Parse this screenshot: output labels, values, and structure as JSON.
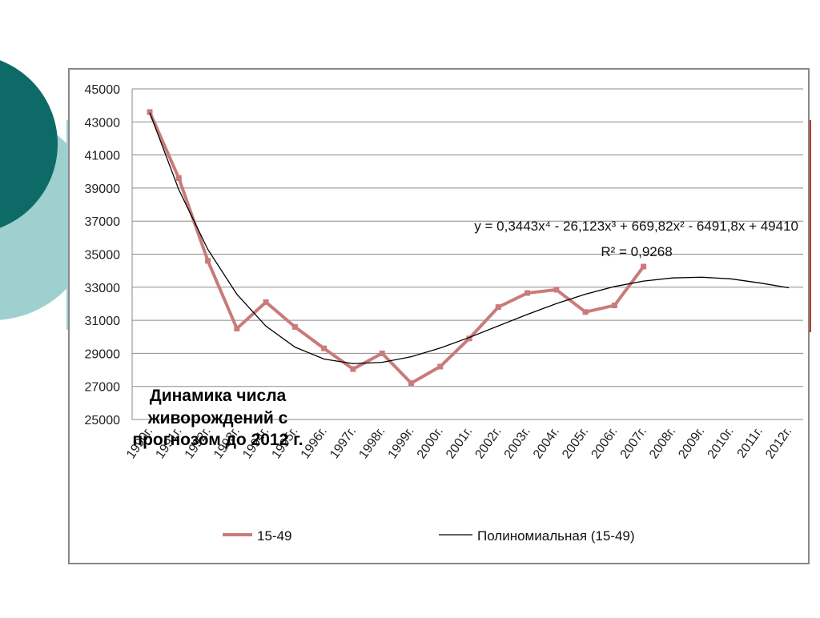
{
  "chart_data": {
    "type": "line",
    "title_lines": [
      "Динамика числа",
      "живорождений  с",
      "прогнозом до 2012 г."
    ],
    "categories": [
      "1990г.",
      "1991г.",
      "1992г.",
      "1993г.",
      "1994г.",
      "1995г.",
      "1996г.",
      "1997г.",
      "1998г.",
      "1999г.",
      "2000г.",
      "2001г.",
      "2002г.",
      "2003г.",
      "2004г.",
      "2005г.",
      "2006г.",
      "2007г.",
      "2008г.",
      "2009г.",
      "2010г.",
      "2011г.",
      "2012г."
    ],
    "series": [
      {
        "name": "15-49",
        "color": "#c97b7b",
        "values": [
          43600,
          39600,
          34600,
          30500,
          32100,
          30600,
          29300,
          28050,
          29000,
          27200,
          28200,
          29900,
          31800,
          32650,
          32850,
          31500,
          31900,
          34250,
          null,
          null,
          null,
          null,
          null
        ]
      },
      {
        "name": "Полиномиальная (15-49)",
        "color": "#000000",
        "values": [
          43562,
          38902,
          35285,
          32576,
          30646,
          29376,
          28655,
          28379,
          28455,
          28794,
          29320,
          29961,
          30658,
          31355,
          32008,
          32580,
          33042,
          33373,
          33563,
          33606,
          33508,
          33260,
          32965
        ]
      }
    ],
    "annotations": [
      "y = 0,3443x⁴ - 26,123x³ + 669,82x² - 6491,8x + 49410",
      "R² = 0,9268"
    ],
    "ylim": [
      25000,
      45000
    ],
    "yticks": [
      25000,
      27000,
      29000,
      31000,
      33000,
      35000,
      37000,
      39000,
      41000,
      43000,
      45000
    ],
    "grid": true,
    "legend": "bottom"
  }
}
